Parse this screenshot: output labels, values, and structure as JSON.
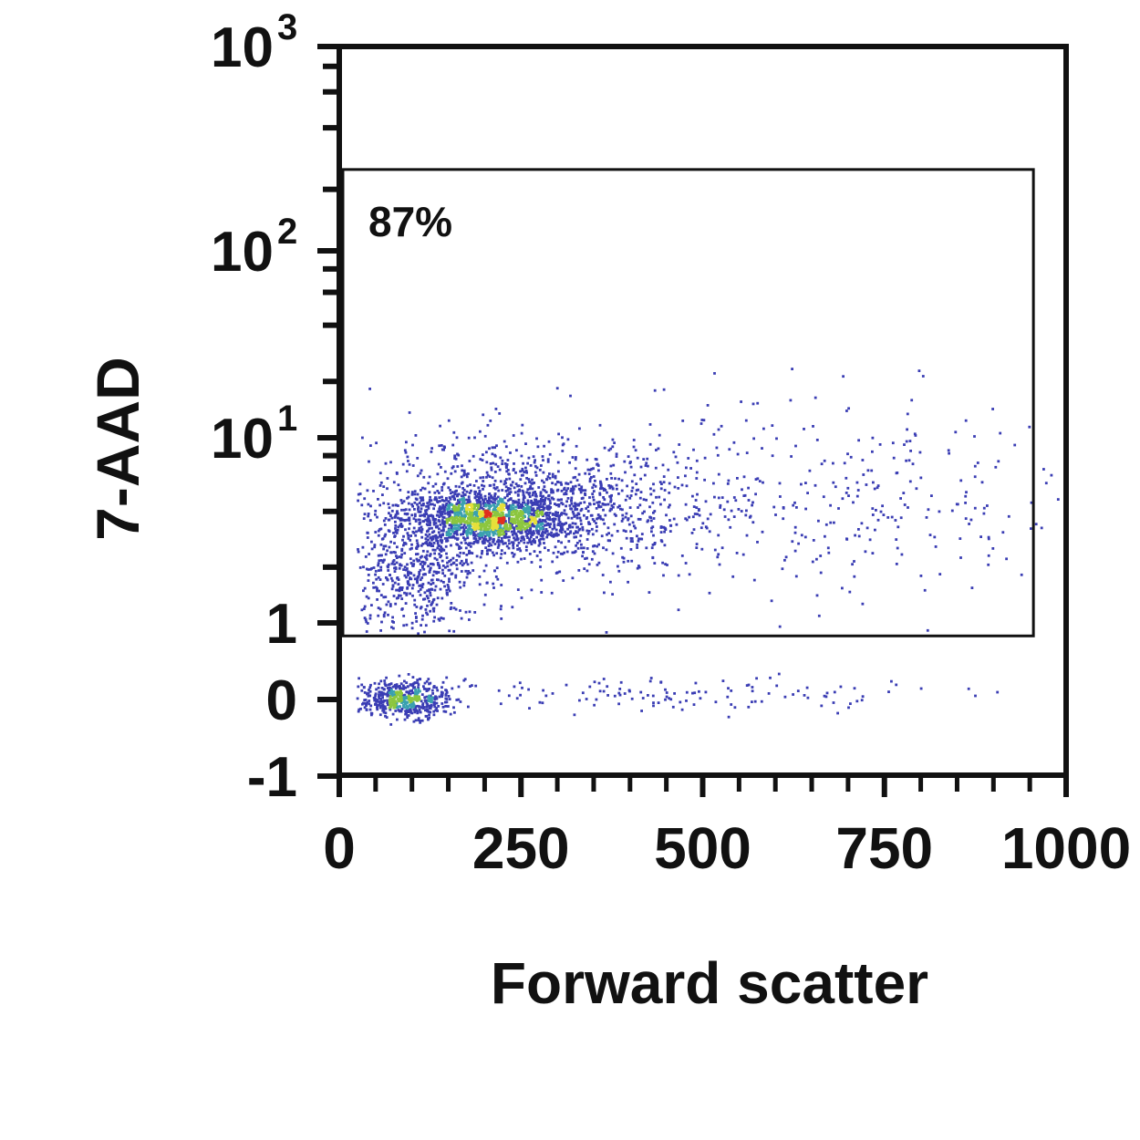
{
  "chart_data": {
    "type": "scatter",
    "subtype": "flow-cytometry density dot plot",
    "xlabel": "Forward scatter",
    "ylabel": "7-AAD",
    "xlim": [
      0,
      1000
    ],
    "ylim": [
      -1,
      1000
    ],
    "yscale": "linear from -1 to 1, log from 1 to 1000",
    "x_ticks": [
      "0",
      "250",
      "500",
      "750",
      "1000"
    ],
    "x_tick_values": [
      0,
      250,
      500,
      750,
      1000
    ],
    "y_ticks": [
      {
        "value": 1000,
        "base": "10",
        "exp": "3"
      },
      {
        "value": 100,
        "base": "10",
        "exp": "2"
      },
      {
        "value": 10,
        "base": "10",
        "exp": "1"
      },
      {
        "value": 1,
        "base": "1",
        "exp": ""
      },
      {
        "value": 0,
        "base": "0",
        "exp": ""
      },
      {
        "value": -1,
        "base": "-1",
        "exp": ""
      }
    ],
    "grid": false,
    "gate": {
      "x_range": [
        5,
        955
      ],
      "y_range": [
        0.83,
        250
      ],
      "label": "87%"
    },
    "populations": [
      {
        "name": "",
        "fsc_mean": 200,
        "fsc_sd": 55,
        "aad_log_mean": 0.56,
        "aad_log_sd": 0.07,
        "n": 1300
      },
      {
        "name": "",
        "fsc_mean": 260,
        "fsc_sd": 110,
        "aad_log_mean": 0.62,
        "aad_log_sd": 0.18,
        "n": 1300
      },
      {
        "name": "",
        "fsc_mean": 100,
        "fsc_sd": 45,
        "aad_log_mean": 0.25,
        "aad_log_sd": 0.15,
        "n": 450
      },
      {
        "name": "",
        "fsc_mean": 650,
        "fsc_sd": 190,
        "aad_log_mean": 0.65,
        "aad_log_sd": 0.3,
        "n": 380
      },
      {
        "name": "",
        "fsc_mean": 90,
        "fsc_sd": 30,
        "aad_lin_mean": 0.0,
        "aad_lin_sd": 0.12,
        "n": 500
      },
      {
        "name": "",
        "fsc_mean": 420,
        "fsc_sd": 220,
        "aad_lin_mean": 0.05,
        "aad_lin_sd": 0.12,
        "n": 150
      }
    ],
    "density_colors": [
      "#3a3db4",
      "#3aa0b0",
      "#8cc63f",
      "#e6e03a",
      "#e0301e"
    ]
  }
}
